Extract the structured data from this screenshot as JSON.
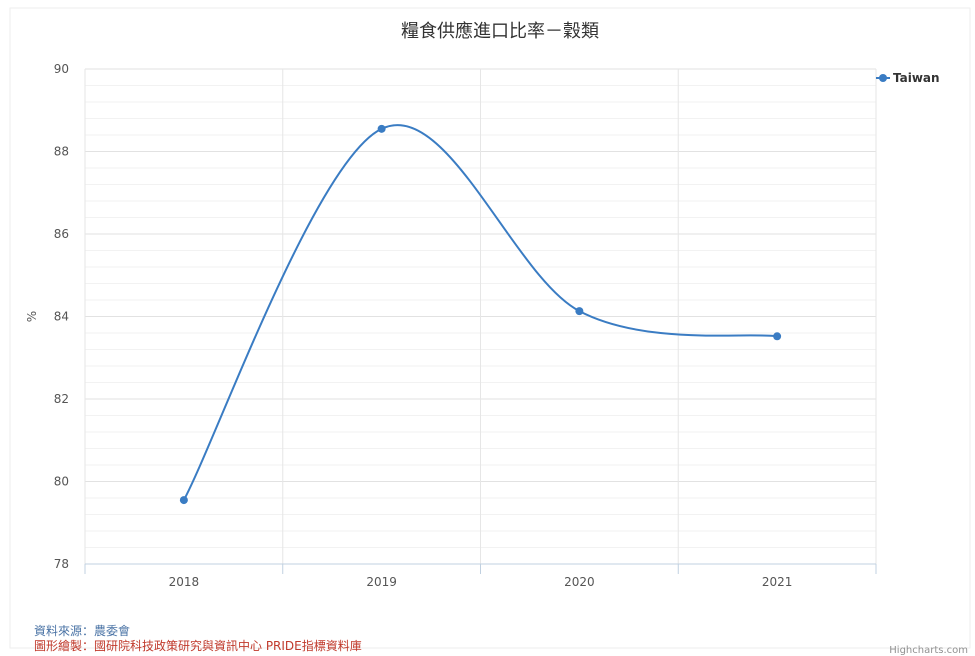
{
  "chart_data": {
    "type": "line",
    "title": "糧食供應進口比率－穀類",
    "ylabel": "%",
    "xlabel": "",
    "categories": [
      "2018",
      "2019",
      "2020",
      "2021"
    ],
    "series": [
      {
        "name": "Taiwan",
        "values": [
          79.55,
          88.55,
          84.13,
          83.52
        ],
        "color": "#3a7cc3"
      }
    ],
    "ylim": [
      78,
      90
    ],
    "yticks": [
      78,
      80,
      82,
      84,
      86,
      88,
      90
    ],
    "grid": true,
    "legend_position": "top-right",
    "smooth": true
  },
  "footer": {
    "source": "資料來源：農委會",
    "drawn_by": "圖形繪製：國研院科技政策研究與資訊中心 PRIDE指標資料庫"
  },
  "credits": "Highcharts.com"
}
